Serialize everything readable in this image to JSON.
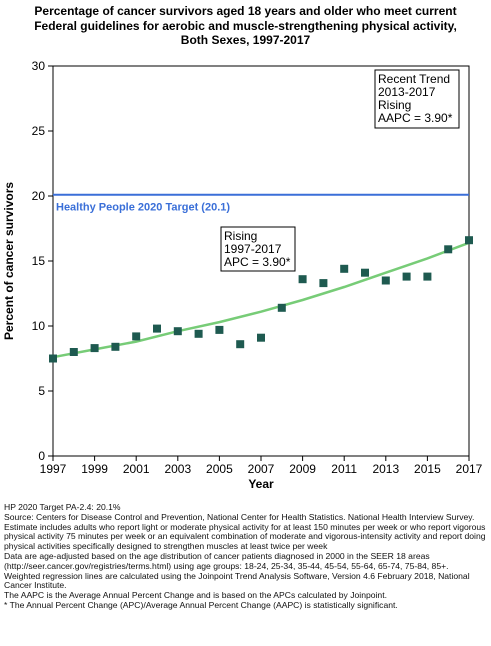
{
  "title_lines": [
    "Percentage of cancer survivors aged 18 years and older who meet current",
    "Federal guidelines for aerobic and muscle-strengthening physical activity,",
    "Both Sexes,  1997-2017"
  ],
  "chart_data": {
    "type": "scatter",
    "xlabel": "Year",
    "ylabel": "Percent of cancer survivors",
    "xlim": [
      1997,
      2017
    ],
    "ylim": [
      0,
      30
    ],
    "x_ticks": [
      "1997",
      "1999",
      "2001",
      "2003",
      "2005",
      "2007",
      "2009",
      "2011",
      "2013",
      "2015",
      "2017"
    ],
    "y_ticks": [
      "0",
      "5",
      "10",
      "15",
      "20",
      "25",
      "30"
    ],
    "grid": false,
    "series": [
      {
        "kind": "observed",
        "x": [
          1997,
          1998,
          1999,
          2000,
          2001,
          2002,
          2003,
          2004,
          2005,
          2006,
          2007,
          2008,
          2009,
          2010,
          2011,
          2012,
          2013,
          2014,
          2015,
          2016,
          2017
        ],
        "y": [
          7.5,
          8.0,
          8.3,
          8.4,
          9.2,
          9.8,
          9.6,
          9.4,
          9.7,
          8.6,
          9.1,
          11.4,
          13.6,
          13.3,
          14.4,
          14.1,
          13.5,
          13.8,
          13.8,
          15.9,
          16.6
        ]
      },
      {
        "kind": "modeled",
        "x": [
          1997,
          1999,
          2001,
          2003,
          2005,
          2007,
          2009,
          2011,
          2013,
          2015,
          2017
        ],
        "y": [
          7.6,
          8.2,
          8.8,
          9.6,
          10.3,
          11.1,
          12.0,
          13.0,
          14.1,
          15.2,
          16.4
        ]
      }
    ],
    "target": {
      "value": 20.1,
      "label": "Healthy People 2020 Target (20.1)"
    },
    "annotations": [
      {
        "lines": [
          "Recent Trend",
          "2013-2017",
          "Rising",
          "AAPC =  3.90*"
        ]
      },
      {
        "lines": [
          "Rising",
          "1997-2017",
          "APC =  3.90*"
        ]
      }
    ],
    "colors": {
      "points": "#1e5a50",
      "trend": "#77cc77",
      "target": "#3a6fd8",
      "axis": "#000000"
    }
  },
  "footnotes": [
    "HP 2020 Target PA-2.4: 20.1%",
    "Source: Centers for Disease Control and Prevention, National Center for Health Statistics. National Health Interview Survey.",
    "Estimate includes adults who report light or moderate physical activity for at least 150 minutes per week or who report vigorous physical activity 75 minutes per week or an equivalent combination of moderate and vigorous-intensity activity and report doing physical activities specifically designed to strengthen muscles at least twice per week",
    "Data are age-adjusted based on the age distribution of cancer patients diagnosed in 2000 in the SEER 18 areas (http://seer.cancer.gov/registries/terms.html) using age groups: 18-24, 25-34, 35-44, 45-54, 55-64, 65-74, 75-84, 85+.",
    "Weighted regression lines are calculated using the Joinpoint Trend Analysis Software, Version 4.6 February 2018, National Cancer Institute.",
    "The AAPC is the Average Annual Percent Change and is based on the APCs calculated by Joinpoint.",
    "* The Annual Percent Change (APC)/Average Annual Percent Change (AAPC) is statistically significant."
  ]
}
